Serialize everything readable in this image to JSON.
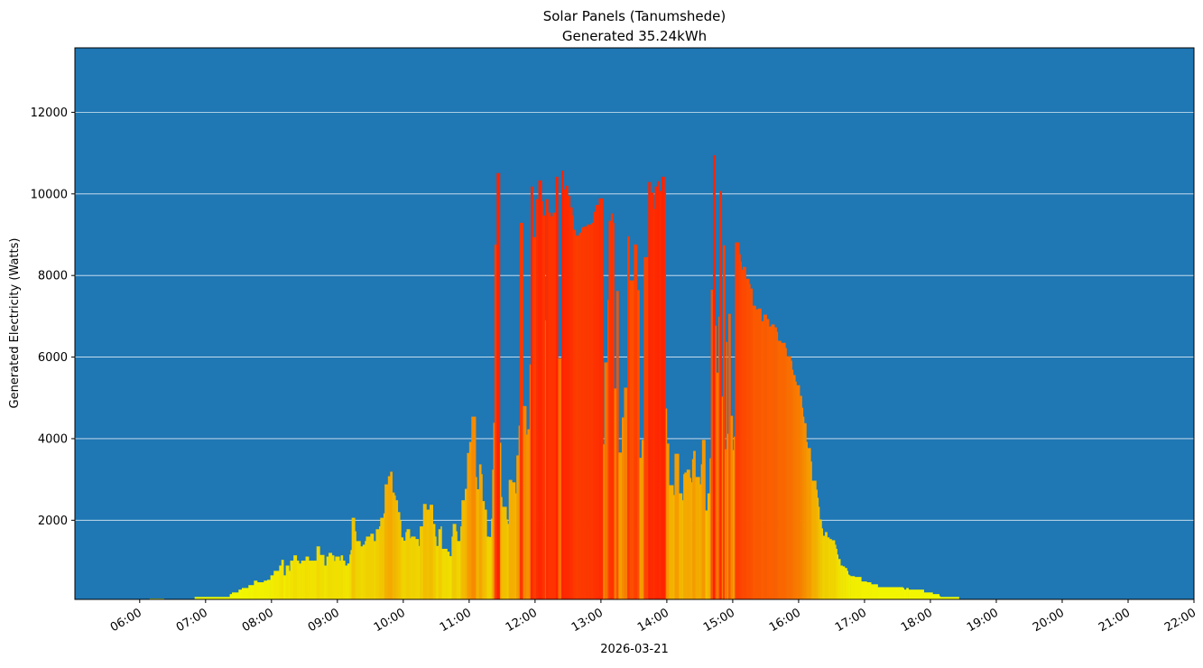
{
  "chart_data": {
    "type": "bar",
    "title": "Solar Panels (Tanumshede)",
    "subtitle": "Generated 35.24kWh",
    "xlabel": "2026-03-21",
    "ylabel": "Generated Electricity (Watts)",
    "xlim": [
      "05:01",
      "22:00"
    ],
    "ylim": [
      60,
      13580
    ],
    "grid": "horizontal",
    "background_color": "#1f77b4",
    "colormap": "yellow (low) to red (high)",
    "color_stops": [
      [
        0,
        "#f2ff00"
      ],
      [
        1500,
        "#f0d400"
      ],
      [
        3500,
        "#f5a000"
      ],
      [
        6500,
        "#fa6400"
      ],
      [
        10500,
        "#ff2300"
      ]
    ],
    "x_ticks": [
      "06:00",
      "07:00",
      "08:00",
      "09:00",
      "10:00",
      "11:00",
      "12:00",
      "13:00",
      "14:00",
      "15:00",
      "16:00",
      "17:00",
      "18:00",
      "19:00",
      "20:00",
      "21:00",
      "22:00"
    ],
    "y_ticks": [
      2000,
      4000,
      6000,
      8000,
      10000,
      12000
    ],
    "points": [
      [
        "06:09",
        80
      ],
      [
        "06:22",
        0
      ],
      [
        "06:47",
        60
      ],
      [
        "06:50",
        120
      ],
      [
        "07:22",
        190
      ],
      [
        "07:24",
        230
      ],
      [
        "07:30",
        300
      ],
      [
        "07:33",
        340
      ],
      [
        "07:39",
        410
      ],
      [
        "07:44",
        520
      ],
      [
        "07:47",
        480
      ],
      [
        "07:53",
        520
      ],
      [
        "07:56",
        540
      ],
      [
        "07:59",
        650
      ],
      [
        "08:02",
        760
      ],
      [
        "08:07",
        890
      ],
      [
        "08:09",
        1030
      ],
      [
        "08:11",
        650
      ],
      [
        "08:13",
        890
      ],
      [
        "08:16",
        760
      ],
      [
        "08:17",
        1010
      ],
      [
        "08:20",
        1140
      ],
      [
        "08:23",
        1010
      ],
      [
        "08:25",
        940
      ],
      [
        "08:27",
        1010
      ],
      [
        "08:31",
        1110
      ],
      [
        "08:34",
        1010
      ],
      [
        "08:41",
        1360
      ],
      [
        "08:44",
        1150
      ],
      [
        "08:48",
        890
      ],
      [
        "08:50",
        1110
      ],
      [
        "08:52",
        1200
      ],
      [
        "08:55",
        1140
      ],
      [
        "08:57",
        1000
      ],
      [
        "08:58",
        1110
      ],
      [
        "09:02",
        1010
      ],
      [
        "09:03",
        1140
      ],
      [
        "09:05",
        1010
      ],
      [
        "09:07",
        890
      ],
      [
        "09:09",
        940
      ],
      [
        "09:11",
        1160
      ],
      [
        "09:12",
        1270
      ],
      [
        "09:13",
        2060
      ],
      [
        "09:16",
        1730
      ],
      [
        "09:17",
        1490
      ],
      [
        "09:21",
        1360
      ],
      [
        "09:23",
        1400
      ],
      [
        "09:25",
        1490
      ],
      [
        "09:26",
        1600
      ],
      [
        "09:30",
        1670
      ],
      [
        "09:33",
        1490
      ],
      [
        "09:35",
        1780
      ],
      [
        "09:38",
        1850
      ],
      [
        "09:39",
        2060
      ],
      [
        "09:42",
        2170
      ],
      [
        "09:43",
        2880
      ],
      [
        "09:46",
        3080
      ],
      [
        "09:48",
        3190
      ],
      [
        "09:50",
        2680
      ],
      [
        "09:52",
        2610
      ],
      [
        "09:53",
        2490
      ],
      [
        "09:55",
        2200
      ],
      [
        "09:57",
        2000
      ],
      [
        "09:58",
        1580
      ],
      [
        "10:00",
        1500
      ],
      [
        "10:02",
        1710
      ],
      [
        "10:03",
        1780
      ],
      [
        "10:06",
        1560
      ],
      [
        "10:07",
        1600
      ],
      [
        "10:11",
        1540
      ],
      [
        "10:14",
        1370
      ],
      [
        "10:15",
        1850
      ],
      [
        "10:18",
        2400
      ],
      [
        "10:21",
        2260
      ],
      [
        "10:24",
        2380
      ],
      [
        "10:27",
        1910
      ],
      [
        "10:29",
        1600
      ],
      [
        "10:30",
        1370
      ],
      [
        "10:32",
        1780
      ],
      [
        "10:34",
        1850
      ],
      [
        "10:35",
        1300
      ],
      [
        "10:40",
        1230
      ],
      [
        "10:42",
        1120
      ],
      [
        "10:44",
        1600
      ],
      [
        "10:45",
        1910
      ],
      [
        "10:48",
        1730
      ],
      [
        "10:49",
        1490
      ],
      [
        "10:52",
        1850
      ],
      [
        "10:53",
        2490
      ],
      [
        "10:56",
        2770
      ],
      [
        "10:58",
        3650
      ],
      [
        "11:00",
        3920
      ],
      [
        "11:02",
        4540
      ],
      [
        "11:06",
        3060
      ],
      [
        "11:07",
        2760
      ],
      [
        "11:09",
        3370
      ],
      [
        "11:11",
        3130
      ],
      [
        "11:12",
        2470
      ],
      [
        "11:14",
        2260
      ],
      [
        "11:16",
        1600
      ],
      [
        "11:18",
        1590
      ],
      [
        "11:20",
        2040
      ],
      [
        "11:21",
        3240
      ],
      [
        "11:22",
        4390
      ],
      [
        "11:23",
        8760
      ],
      [
        "11:25",
        10510
      ],
      [
        "11:28",
        3900
      ],
      [
        "11:29",
        2570
      ],
      [
        "11:30",
        2330
      ],
      [
        "11:34",
        2020
      ],
      [
        "11:35",
        1910
      ],
      [
        "11:36",
        2990
      ],
      [
        "11:39",
        2930
      ],
      [
        "11:42",
        2660
      ],
      [
        "11:43",
        3590
      ],
      [
        "11:45",
        4320
      ],
      [
        "11:46",
        9290
      ],
      [
        "11:49",
        4800
      ],
      [
        "11:52",
        4100
      ],
      [
        "11:53",
        4230
      ],
      [
        "11:55",
        5820
      ],
      [
        "11:56",
        10180
      ],
      [
        "11:58",
        8940
      ],
      [
        "12:01",
        9870
      ],
      [
        "12:03",
        10330
      ],
      [
        "12:06",
        9820
      ],
      [
        "12:07",
        9470
      ],
      [
        "12:09",
        6900
      ],
      [
        "12:10",
        9870
      ],
      [
        "12:12",
        9540
      ],
      [
        "12:14",
        9450
      ],
      [
        "12:16",
        9540
      ],
      [
        "12:19",
        10420
      ],
      [
        "12:21",
        5970
      ],
      [
        "12:24",
        10570
      ],
      [
        "12:26",
        10110
      ],
      [
        "12:28",
        10200
      ],
      [
        "12:30",
        9950
      ],
      [
        "12:32",
        9670
      ],
      [
        "12:34",
        9470
      ],
      [
        "12:35",
        9120
      ],
      [
        "12:37",
        8980
      ],
      [
        "12:40",
        9050
      ],
      [
        "12:42",
        9180
      ],
      [
        "12:44",
        9200
      ],
      [
        "12:47",
        9250
      ],
      [
        "12:51",
        9290
      ],
      [
        "12:53",
        9560
      ],
      [
        "12:55",
        9730
      ],
      [
        "12:58",
        9890
      ],
      [
        "13:02",
        3860
      ],
      [
        "13:03",
        5870
      ],
      [
        "13:06",
        7400
      ],
      [
        "13:07",
        9340
      ],
      [
        "13:09",
        9520
      ],
      [
        "13:11",
        9290
      ],
      [
        "13:12",
        5230
      ],
      [
        "13:14",
        7620
      ],
      [
        "13:16",
        3660
      ],
      [
        "13:19",
        4520
      ],
      [
        "13:21",
        5250
      ],
      [
        "13:24",
        8960
      ],
      [
        "13:26",
        7880
      ],
      [
        "13:30",
        8760
      ],
      [
        "13:33",
        7640
      ],
      [
        "13:35",
        3530
      ],
      [
        "13:37",
        3970
      ],
      [
        "13:39",
        8450
      ],
      [
        "13:43",
        10290
      ],
      [
        "13:45",
        10030
      ],
      [
        "13:48",
        9630
      ],
      [
        "13:49",
        10180
      ],
      [
        "13:51",
        10310
      ],
      [
        "13:53",
        10070
      ],
      [
        "13:55",
        10420
      ],
      [
        "13:58",
        10030
      ],
      [
        "13:59",
        4740
      ],
      [
        "14:00",
        3880
      ],
      [
        "14:02",
        2860
      ],
      [
        "14:06",
        2620
      ],
      [
        "14:07",
        3630
      ],
      [
        "14:11",
        2660
      ],
      [
        "14:14",
        2490
      ],
      [
        "14:15",
        3130
      ],
      [
        "14:16",
        3170
      ],
      [
        "14:18",
        3240
      ],
      [
        "14:21",
        3040
      ],
      [
        "14:22",
        2930
      ],
      [
        "14:23",
        3500
      ],
      [
        "14:24",
        3700
      ],
      [
        "14:26",
        3060
      ],
      [
        "14:30",
        2880
      ],
      [
        "14:31",
        3370
      ],
      [
        "14:32",
        3970
      ],
      [
        "14:35",
        2240
      ],
      [
        "14:37",
        2660
      ],
      [
        "14:39",
        3520
      ],
      [
        "14:40",
        7650
      ],
      [
        "14:42",
        10950
      ],
      [
        "14:44",
        6770
      ],
      [
        "14:45",
        5620
      ],
      [
        "14:47",
        6990
      ],
      [
        "14:48",
        10070
      ],
      [
        "14:50",
        5030
      ],
      [
        "14:51",
        8740
      ],
      [
        "14:53",
        3740
      ],
      [
        "14:54",
        6370
      ],
      [
        "14:55",
        4120
      ],
      [
        "14:56",
        7060
      ],
      [
        "14:58",
        4560
      ],
      [
        "15:00",
        3720
      ],
      [
        "15:01",
        4050
      ],
      [
        "15:02",
        8810
      ],
      [
        "15:06",
        8520
      ],
      [
        "15:07",
        8340
      ],
      [
        "15:08",
        8140
      ],
      [
        "15:09",
        8210
      ],
      [
        "15:12",
        7920
      ],
      [
        "15:15",
        7790
      ],
      [
        "15:16",
        7680
      ],
      [
        "15:18",
        7260
      ],
      [
        "15:21",
        7170
      ],
      [
        "15:23",
        7190
      ],
      [
        "15:26",
        6880
      ],
      [
        "15:28",
        7040
      ],
      [
        "15:31",
        6930
      ],
      [
        "15:33",
        6750
      ],
      [
        "15:35",
        6800
      ],
      [
        "15:38",
        6730
      ],
      [
        "15:40",
        6620
      ],
      [
        "15:41",
        6400
      ],
      [
        "15:44",
        6350
      ],
      [
        "15:48",
        6220
      ],
      [
        "15:49",
        6020
      ],
      [
        "15:53",
        5910
      ],
      [
        "15:54",
        5690
      ],
      [
        "15:55",
        5560
      ],
      [
        "15:57",
        5400
      ],
      [
        "15:58",
        5310
      ],
      [
        "16:01",
        5050
      ],
      [
        "16:03",
        4760
      ],
      [
        "16:04",
        4540
      ],
      [
        "16:05",
        4380
      ],
      [
        "16:07",
        3920
      ],
      [
        "16:08",
        3770
      ],
      [
        "16:11",
        3440
      ],
      [
        "16:12",
        2970
      ],
      [
        "16:16",
        2750
      ],
      [
        "16:17",
        2550
      ],
      [
        "16:18",
        2330
      ],
      [
        "16:19",
        2020
      ],
      [
        "16:21",
        1800
      ],
      [
        "16:22",
        1620
      ],
      [
        "16:24",
        1710
      ],
      [
        "16:26",
        1580
      ],
      [
        "16:28",
        1540
      ],
      [
        "16:30",
        1510
      ],
      [
        "16:33",
        1400
      ],
      [
        "16:34",
        1300
      ],
      [
        "16:35",
        1160
      ],
      [
        "16:36",
        1050
      ],
      [
        "16:38",
        890
      ],
      [
        "16:40",
        870
      ],
      [
        "16:42",
        830
      ],
      [
        "16:44",
        760
      ],
      [
        "16:45",
        670
      ],
      [
        "16:46",
        650
      ],
      [
        "16:47",
        630
      ],
      [
        "16:51",
        610
      ],
      [
        "16:57",
        500
      ],
      [
        "17:02",
        480
      ],
      [
        "17:06",
        430
      ],
      [
        "17:12",
        360
      ],
      [
        "17:35",
        340
      ],
      [
        "17:36",
        300
      ],
      [
        "17:38",
        340
      ],
      [
        "17:40",
        300
      ],
      [
        "17:54",
        230
      ],
      [
        "18:02",
        190
      ],
      [
        "18:08",
        140
      ],
      [
        "18:09",
        120
      ],
      [
        "18:26",
        0
      ]
    ]
  }
}
